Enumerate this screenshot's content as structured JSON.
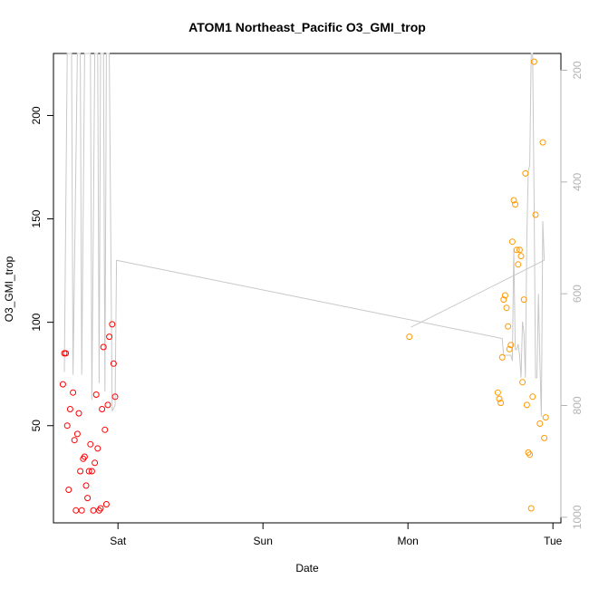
{
  "chart_data": {
    "type": "scatter",
    "title": "ATOM1 Northeast_Pacific O3_GMI_trop",
    "xlabel": "Date",
    "ylabel": "O3_GMI_trop",
    "x_ticks": [
      {
        "x": 1.0,
        "label": "Sat"
      },
      {
        "x": 2.0,
        "label": "Sun"
      },
      {
        "x": 3.0,
        "label": "Mon"
      },
      {
        "x": 4.0,
        "label": "Tue"
      }
    ],
    "xlim": [
      0.555,
      4.055
    ],
    "ylim": [
      3,
      230
    ],
    "y_ticks": [
      50,
      100,
      150,
      200
    ],
    "y2_ticks": [
      200,
      400,
      600,
      800,
      1000
    ],
    "y2lim": [
      1010,
      170
    ],
    "grid": false,
    "series": [
      {
        "color": "#ff0000",
        "points": [
          [
            0.62,
            70
          ],
          [
            0.63,
            85
          ],
          [
            0.64,
            85
          ],
          [
            0.65,
            50
          ],
          [
            0.66,
            19
          ],
          [
            0.67,
            58
          ],
          [
            0.69,
            66
          ],
          [
            0.7,
            43
          ],
          [
            0.71,
            9
          ],
          [
            0.72,
            46
          ],
          [
            0.73,
            56
          ],
          [
            0.74,
            28
          ],
          [
            0.75,
            9
          ],
          [
            0.76,
            34
          ],
          [
            0.77,
            35
          ],
          [
            0.78,
            21
          ],
          [
            0.79,
            15
          ],
          [
            0.8,
            28
          ],
          [
            0.81,
            41
          ],
          [
            0.82,
            28
          ],
          [
            0.83,
            9
          ],
          [
            0.84,
            32
          ],
          [
            0.85,
            65
          ],
          [
            0.86,
            39
          ],
          [
            0.87,
            9
          ],
          [
            0.88,
            10
          ],
          [
            0.89,
            58
          ],
          [
            0.9,
            88
          ],
          [
            0.91,
            48
          ],
          [
            0.92,
            12
          ],
          [
            0.93,
            60
          ],
          [
            0.94,
            93
          ],
          [
            0.96,
            99
          ],
          [
            0.97,
            80
          ],
          [
            0.98,
            64
          ]
        ]
      },
      {
        "color": "#ff9900",
        "points": [
          [
            3.01,
            93
          ],
          [
            3.62,
            66
          ],
          [
            3.63,
            63
          ],
          [
            3.64,
            61
          ],
          [
            3.65,
            83
          ],
          [
            3.66,
            111
          ],
          [
            3.67,
            113
          ],
          [
            3.68,
            107
          ],
          [
            3.69,
            98
          ],
          [
            3.7,
            87
          ],
          [
            3.71,
            89
          ],
          [
            3.72,
            139
          ],
          [
            3.73,
            159
          ],
          [
            3.74,
            157
          ],
          [
            3.75,
            135
          ],
          [
            3.76,
            128
          ],
          [
            3.77,
            135
          ],
          [
            3.78,
            132
          ],
          [
            3.79,
            71
          ],
          [
            3.8,
            111
          ],
          [
            3.81,
            172
          ],
          [
            3.82,
            60
          ],
          [
            3.83,
            37
          ],
          [
            3.84,
            36
          ],
          [
            3.85,
            10
          ],
          [
            3.86,
            64
          ],
          [
            3.87,
            226
          ],
          [
            3.88,
            152
          ],
          [
            3.91,
            51
          ],
          [
            3.93,
            187
          ],
          [
            3.94,
            44
          ],
          [
            3.95,
            54
          ]
        ]
      }
    ],
    "pressure_line": {
      "color": "#c8c8c8",
      "points": [
        [
          0.63,
          740
        ],
        [
          0.65,
          170
        ],
        [
          0.66,
          170
        ],
        [
          0.67,
          170
        ],
        [
          0.68,
          170
        ],
        [
          0.69,
          745
        ],
        [
          0.72,
          170
        ],
        [
          0.73,
          170
        ],
        [
          0.74,
          170
        ],
        [
          0.75,
          745
        ],
        [
          0.77,
          170
        ],
        [
          0.78,
          170
        ],
        [
          0.79,
          170
        ],
        [
          0.8,
          170
        ],
        [
          0.81,
          170
        ],
        [
          0.82,
          790
        ],
        [
          0.84,
          170
        ],
        [
          0.85,
          170
        ],
        [
          0.86,
          170
        ],
        [
          0.87,
          760
        ],
        [
          0.88,
          170
        ],
        [
          0.89,
          170
        ],
        [
          0.9,
          170
        ],
        [
          0.91,
          775
        ],
        [
          0.92,
          170
        ],
        [
          0.93,
          170
        ],
        [
          0.94,
          170
        ],
        [
          0.96,
          810
        ],
        [
          0.98,
          800
        ],
        [
          0.99,
          540
        ],
        [
          3.65,
          680
        ],
        [
          3.66,
          710
        ],
        [
          3.7,
          710
        ],
        [
          3.71,
          710
        ],
        [
          3.72,
          720
        ],
        [
          3.73,
          520
        ],
        [
          3.74,
          700
        ],
        [
          3.75,
          700
        ],
        [
          3.76,
          690
        ],
        [
          3.77,
          710
        ],
        [
          3.78,
          750
        ],
        [
          3.79,
          650
        ],
        [
          3.8,
          670
        ],
        [
          3.81,
          750
        ],
        [
          3.82,
          500
        ],
        [
          3.83,
          380
        ],
        [
          3.84,
          370
        ],
        [
          3.85,
          170
        ],
        [
          3.86,
          170
        ],
        [
          3.87,
          430
        ],
        [
          3.88,
          750
        ],
        [
          3.89,
          750
        ],
        [
          3.9,
          600
        ],
        [
          3.91,
          720
        ],
        [
          3.92,
          820
        ],
        [
          3.93,
          470
        ],
        [
          3.94,
          540
        ],
        [
          3.02,
          660
        ]
      ]
    }
  }
}
